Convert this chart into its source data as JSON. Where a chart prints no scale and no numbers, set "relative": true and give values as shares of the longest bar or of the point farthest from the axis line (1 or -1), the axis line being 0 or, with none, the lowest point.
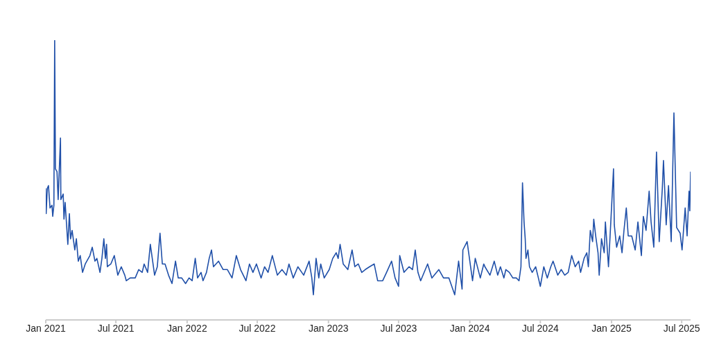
{
  "chart_data": {
    "type": "line",
    "relative": true,
    "marker": "none",
    "line_style": "solid",
    "xlim": [
      "2021-01-01",
      "2025-07-24"
    ],
    "xticks": [
      {
        "value": "2021-01-01",
        "label": "Jan 2021"
      },
      {
        "value": "2021-07-01",
        "label": "Jul 2021"
      },
      {
        "value": "2022-01-01",
        "label": "Jan 2022"
      },
      {
        "value": "2022-07-01",
        "label": "Jul 2022"
      },
      {
        "value": "2023-01-01",
        "label": "Jan 2023"
      },
      {
        "value": "2023-07-01",
        "label": "Jul 2023"
      },
      {
        "value": "2024-01-01",
        "label": "Jan 2024"
      },
      {
        "value": "2024-07-01",
        "label": "Jul 2024"
      },
      {
        "value": "2025-01-01",
        "label": "Jan 2025"
      },
      {
        "value": "2025-07-01",
        "label": "Jul 2025"
      }
    ],
    "series": [
      {
        "color": "#1f4fa8",
        "x": [
          "2021-01-01",
          "2021-01-02",
          "2021-01-05",
          "2021-01-08",
          "2021-01-12",
          "2021-01-17",
          "2021-01-19",
          "2021-01-22",
          "2021-01-24",
          "2021-01-26",
          "2021-01-30",
          "2021-02-02",
          "2021-02-08",
          "2021-02-09",
          "2021-02-15",
          "2021-02-17",
          "2021-02-20",
          "2021-02-27",
          "2021-03-03",
          "2021-03-06",
          "2021-03-10",
          "2021-03-14",
          "2021-03-17",
          "2021-03-21",
          "2021-03-26",
          "2021-03-31",
          "2021-04-06",
          "2021-04-13",
          "2021-04-25",
          "2021-05-01",
          "2021-05-08",
          "2021-05-13",
          "2021-05-21",
          "2021-05-26",
          "2021-05-31",
          "2021-06-04",
          "2021-06-07",
          "2021-06-09",
          "2021-06-18",
          "2021-06-27",
          "2021-07-06",
          "2021-07-15",
          "2021-07-24",
          "2021-07-28",
          "2021-08-07",
          "2021-08-20",
          "2021-08-29",
          "2021-09-07",
          "2021-09-12",
          "2021-09-21",
          "2021-09-28",
          "2021-10-04",
          "2021-10-09",
          "2021-10-16",
          "2021-10-23",
          "2021-10-29",
          "2021-11-05",
          "2021-11-14",
          "2021-11-23",
          "2021-12-02",
          "2021-12-09",
          "2021-12-18",
          "2021-12-28",
          "2022-01-06",
          "2022-01-14",
          "2022-01-22",
          "2022-01-28",
          "2022-02-06",
          "2022-02-11",
          "2022-02-20",
          "2022-02-27",
          "2022-03-05",
          "2022-03-10",
          "2022-03-23",
          "2022-04-04",
          "2022-04-15",
          "2022-04-27",
          "2022-05-08",
          "2022-05-19",
          "2022-06-02",
          "2022-06-11",
          "2022-06-20",
          "2022-06-29",
          "2022-07-11",
          "2022-07-20",
          "2022-07-29",
          "2022-08-09",
          "2022-08-22",
          "2022-09-03",
          "2022-09-14",
          "2022-09-21",
          "2022-10-02",
          "2022-10-14",
          "2022-10-29",
          "2022-11-12",
          "2022-11-19",
          "2022-11-23",
          "2022-11-30",
          "2022-12-07",
          "2022-12-12",
          "2022-12-21",
          "2023-01-03",
          "2023-01-12",
          "2023-01-21",
          "2023-01-26",
          "2023-01-31",
          "2023-02-08",
          "2023-02-20",
          "2023-03-03",
          "2023-03-10",
          "2023-03-19",
          "2023-03-28",
          "2023-04-06",
          "2023-04-17",
          "2023-04-29",
          "2023-05-08",
          "2023-05-21",
          "2023-05-31",
          "2023-06-13",
          "2023-06-22",
          "2023-07-01",
          "2023-07-04",
          "2023-07-15",
          "2023-07-28",
          "2023-08-06",
          "2023-08-13",
          "2023-08-20",
          "2023-08-27",
          "2023-09-14",
          "2023-09-25",
          "2023-10-13",
          "2023-10-25",
          "2023-11-08",
          "2023-11-23",
          "2023-12-03",
          "2023-12-12",
          "2023-12-14",
          "2023-12-25",
          "2024-01-05",
          "2024-01-08",
          "2024-01-15",
          "2024-01-28",
          "2024-02-06",
          "2024-02-09",
          "2024-02-22",
          "2024-03-04",
          "2024-03-13",
          "2024-03-20",
          "2024-03-29",
          "2024-04-03",
          "2024-04-12",
          "2024-04-21",
          "2024-04-30",
          "2024-05-07",
          "2024-05-12",
          "2024-05-16",
          "2024-05-20",
          "2024-05-23",
          "2024-05-25",
          "2024-05-30",
          "2024-06-03",
          "2024-06-10",
          "2024-06-19",
          "2024-06-26",
          "2024-07-01",
          "2024-07-10",
          "2024-07-19",
          "2024-07-28",
          "2024-08-03",
          "2024-08-15",
          "2024-08-24",
          "2024-09-02",
          "2024-09-11",
          "2024-09-20",
          "2024-09-29",
          "2024-10-08",
          "2024-10-13",
          "2024-10-22",
          "2024-10-29",
          "2024-11-02",
          "2024-11-07",
          "2024-11-13",
          "2024-11-16",
          "2024-11-21",
          "2024-11-27",
          "2024-11-30",
          "2024-12-06",
          "2024-12-13",
          "2024-12-16",
          "2024-12-24",
          "2024-12-30",
          "2025-01-06",
          "2025-01-08",
          "2025-01-14",
          "2025-01-22",
          "2025-01-28",
          "2025-02-02",
          "2025-02-08",
          "2025-02-13",
          "2025-02-22",
          "2025-03-03",
          "2025-03-10",
          "2025-03-19",
          "2025-03-24",
          "2025-03-31",
          "2025-04-08",
          "2025-04-13",
          "2025-04-20",
          "2025-04-27",
          "2025-05-04",
          "2025-05-12",
          "2025-05-15",
          "2025-05-22",
          "2025-05-28",
          "2025-06-04",
          "2025-06-11",
          "2025-06-18",
          "2025-06-27",
          "2025-07-02",
          "2025-07-10",
          "2025-07-15",
          "2025-07-20",
          "2025-07-22",
          "2025-07-24"
        ],
        "values": [
          0.47,
          0.38,
          0.47,
          0.48,
          0.4,
          0.41,
          0.37,
          0.41,
          1.0,
          0.54,
          0.53,
          0.43,
          0.65,
          0.43,
          0.45,
          0.36,
          0.42,
          0.27,
          0.38,
          0.29,
          0.32,
          0.28,
          0.25,
          0.29,
          0.21,
          0.23,
          0.17,
          0.2,
          0.23,
          0.26,
          0.21,
          0.22,
          0.17,
          0.22,
          0.29,
          0.22,
          0.27,
          0.19,
          0.2,
          0.23,
          0.16,
          0.19,
          0.16,
          0.14,
          0.15,
          0.15,
          0.18,
          0.17,
          0.2,
          0.17,
          0.27,
          0.21,
          0.16,
          0.19,
          0.31,
          0.2,
          0.2,
          0.16,
          0.13,
          0.21,
          0.15,
          0.15,
          0.13,
          0.15,
          0.14,
          0.22,
          0.15,
          0.17,
          0.14,
          0.17,
          0.22,
          0.25,
          0.19,
          0.21,
          0.18,
          0.18,
          0.15,
          0.23,
          0.18,
          0.14,
          0.2,
          0.17,
          0.2,
          0.15,
          0.19,
          0.17,
          0.23,
          0.16,
          0.18,
          0.16,
          0.2,
          0.15,
          0.19,
          0.16,
          0.21,
          0.15,
          0.09,
          0.22,
          0.15,
          0.2,
          0.15,
          0.18,
          0.22,
          0.24,
          0.22,
          0.27,
          0.2,
          0.18,
          0.25,
          0.19,
          0.2,
          0.17,
          0.18,
          0.19,
          0.2,
          0.14,
          0.14,
          0.17,
          0.21,
          0.15,
          0.12,
          0.23,
          0.17,
          0.19,
          0.18,
          0.25,
          0.17,
          0.14,
          0.2,
          0.15,
          0.18,
          0.15,
          0.15,
          0.09,
          0.21,
          0.11,
          0.25,
          0.28,
          0.17,
          0.14,
          0.22,
          0.15,
          0.2,
          0.19,
          0.16,
          0.21,
          0.16,
          0.19,
          0.15,
          0.18,
          0.17,
          0.15,
          0.15,
          0.14,
          0.19,
          0.49,
          0.35,
          0.29,
          0.22,
          0.25,
          0.19,
          0.17,
          0.19,
          0.15,
          0.12,
          0.19,
          0.15,
          0.19,
          0.21,
          0.16,
          0.18,
          0.16,
          0.17,
          0.23,
          0.19,
          0.21,
          0.17,
          0.22,
          0.24,
          0.19,
          0.32,
          0.28,
          0.36,
          0.3,
          0.24,
          0.16,
          0.29,
          0.24,
          0.35,
          0.19,
          0.35,
          0.54,
          0.34,
          0.26,
          0.3,
          0.24,
          0.32,
          0.4,
          0.3,
          0.3,
          0.25,
          0.35,
          0.23,
          0.37,
          0.32,
          0.46,
          0.35,
          0.26,
          0.6,
          0.28,
          0.47,
          0.57,
          0.34,
          0.48,
          0.28,
          0.74,
          0.33,
          0.31,
          0.25,
          0.4,
          0.3,
          0.46,
          0.39,
          0.53
        ]
      }
    ]
  }
}
